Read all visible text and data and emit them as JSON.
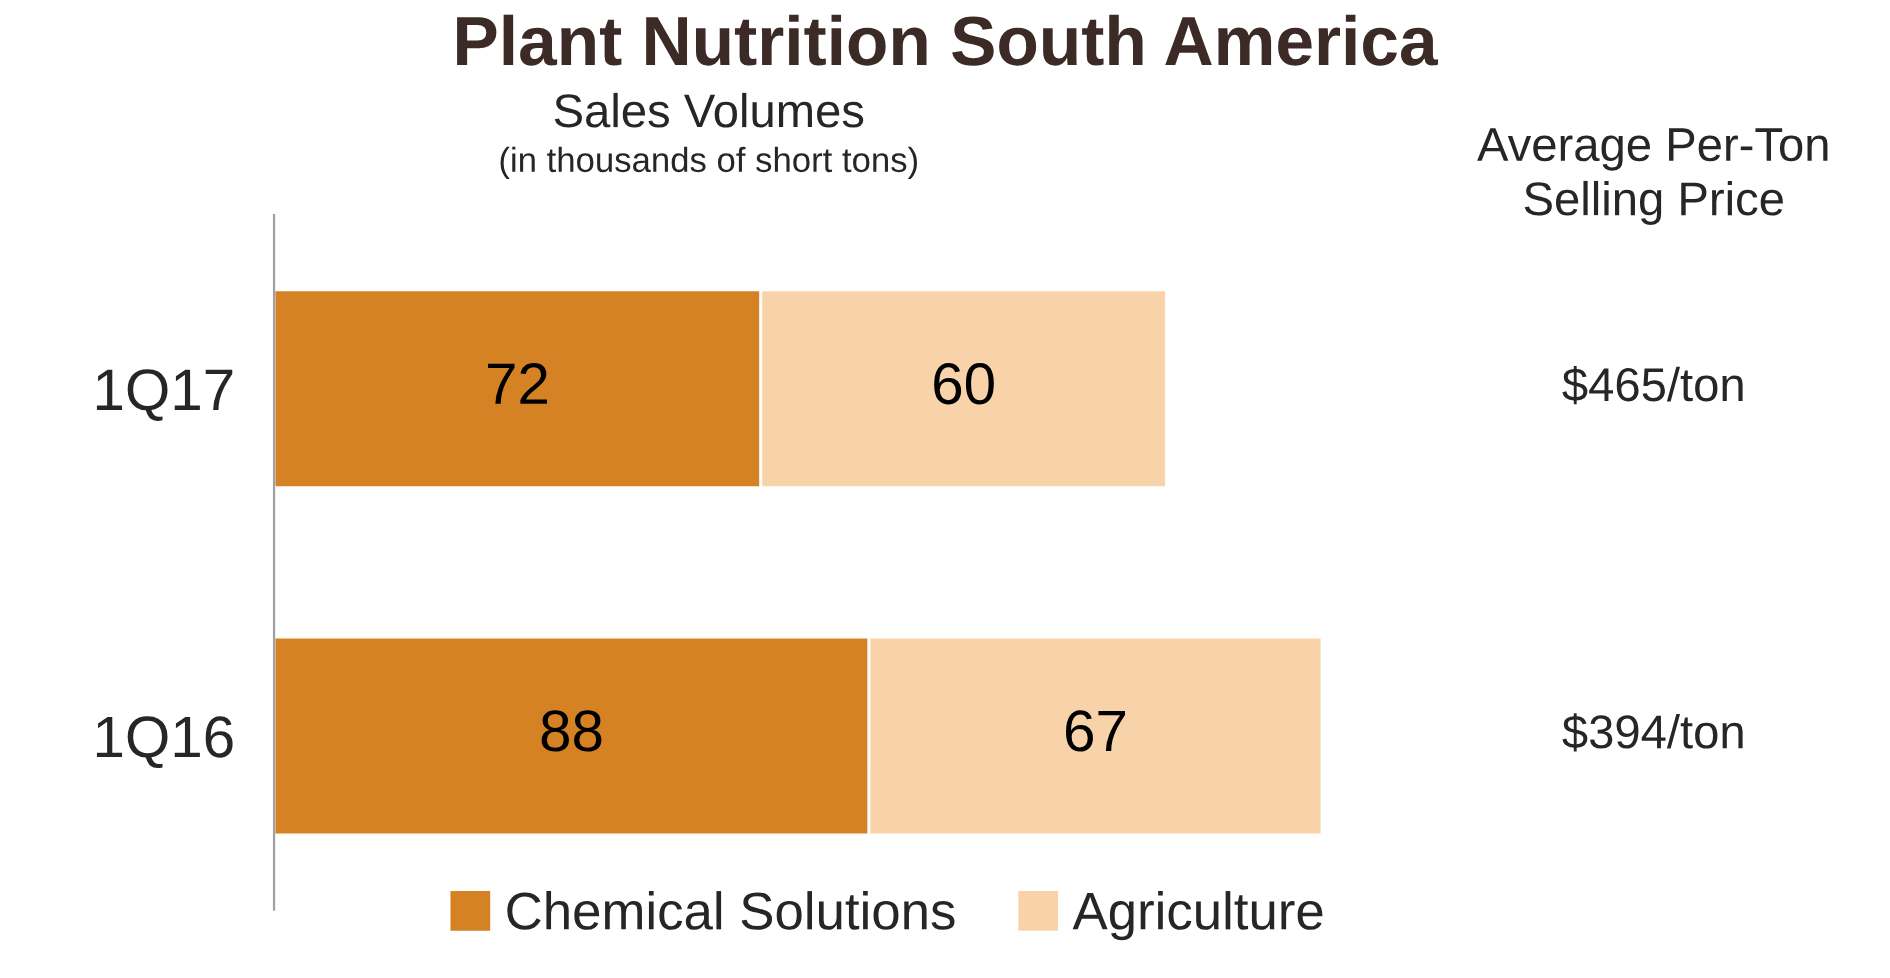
{
  "chart_data": {
    "type": "bar",
    "orientation": "horizontal",
    "stacked": true,
    "title": "Plant Nutrition South America",
    "subtitle": "Sales Volumes",
    "categories": [
      "1Q17",
      "1Q16"
    ],
    "series": [
      {
        "name": "Chemical Solutions",
        "color": "#d48224",
        "values": [
          72,
          88
        ]
      },
      {
        "name": "Agriculture",
        "color": "#f8d3aa",
        "values": [
          60,
          67
        ]
      }
    ],
    "data_labels": true,
    "legend": "bottom",
    "grid": false,
    "tick_labels": "y",
    "annotations": [
      "(in thousands of short tons)",
      "Average Per-Ton Selling Price",
      "$465/ton",
      "$394/ton"
    ]
  }
}
